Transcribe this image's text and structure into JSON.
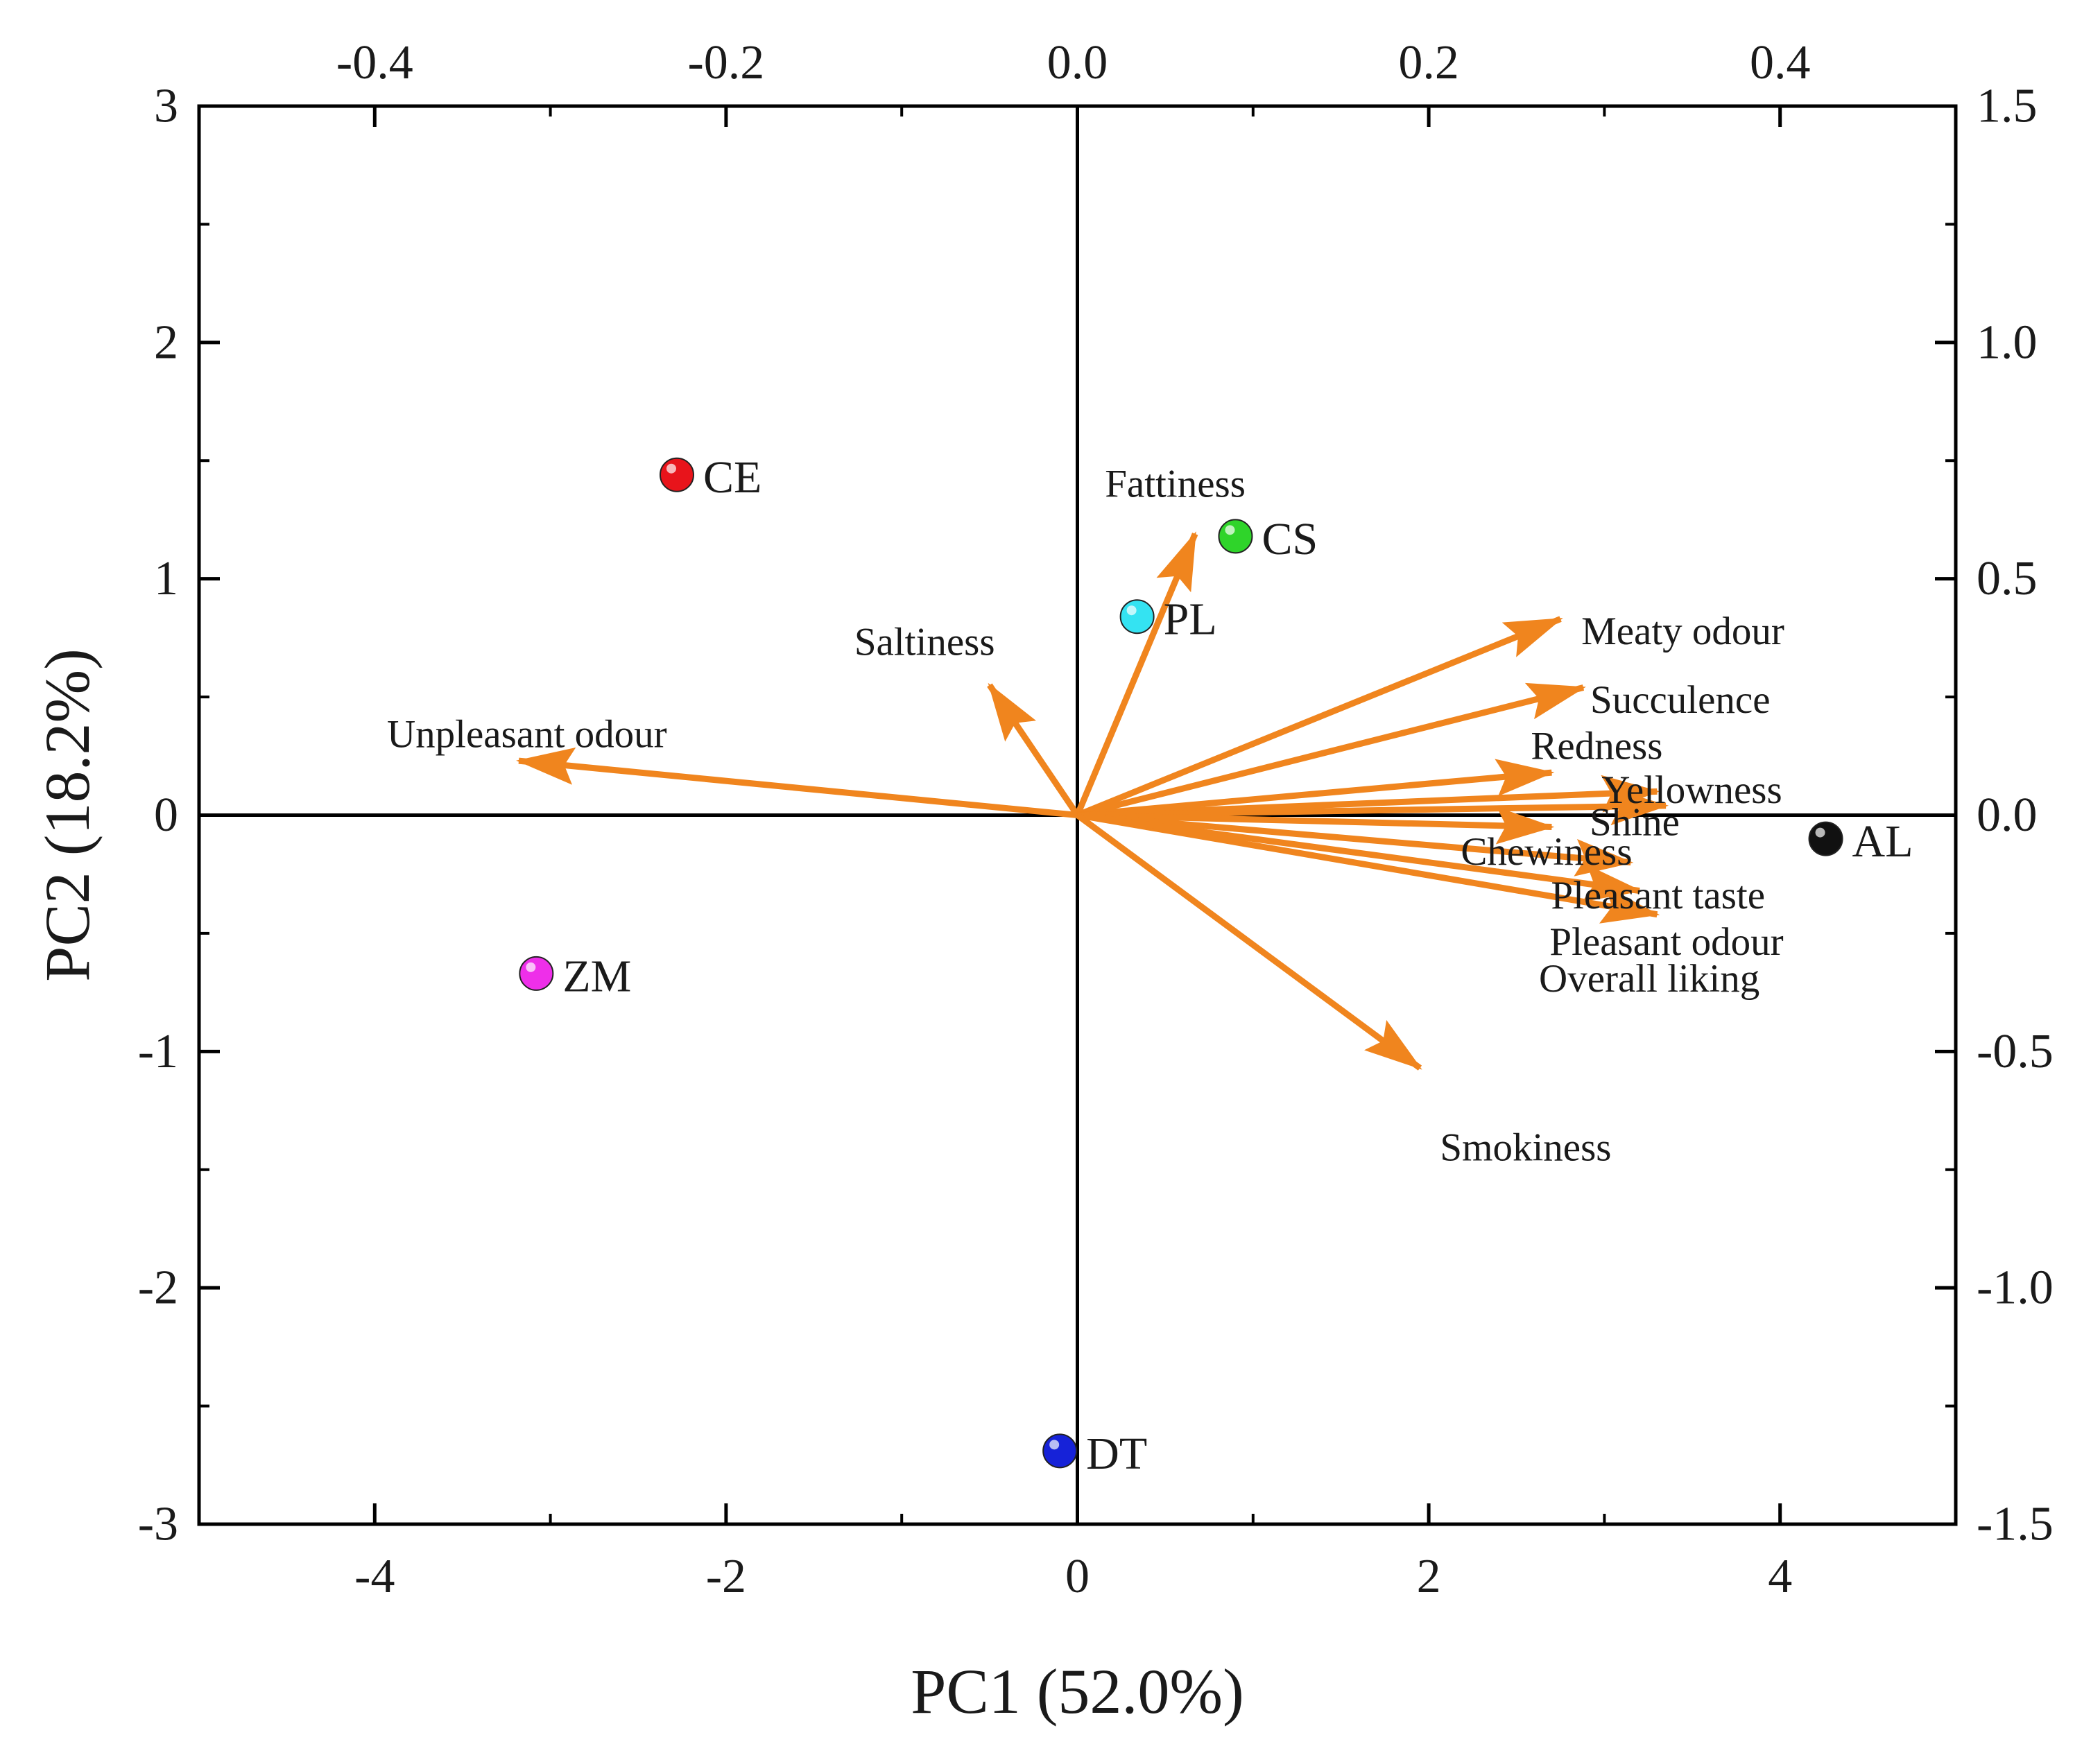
{
  "chart_data": {
    "type": "scatter",
    "subtype": "biplot",
    "title": "",
    "xlabel": "PC1 (52.0%)",
    "ylabel": "PC2 (18.2%)",
    "xlim": [
      -5,
      5
    ],
    "ylim": [
      -3,
      3
    ],
    "x_ticks": [
      -4,
      -2,
      0,
      2,
      4
    ],
    "x_tick_labels": [
      "-4",
      "-2",
      "0",
      "2",
      "4"
    ],
    "y_ticks": [
      -3,
      -2,
      -1,
      0,
      1,
      2,
      3
    ],
    "y_tick_labels": [
      "-3",
      "-2",
      "-1",
      "0",
      "1",
      "2",
      "3"
    ],
    "top_axis": {
      "lim": [
        -0.5,
        0.5
      ],
      "ticks": [
        -0.4,
        -0.2,
        0.0,
        0.2,
        0.4
      ],
      "tick_labels": [
        "-0.4",
        "-0.2",
        "0.0",
        "0.2",
        "0.4"
      ]
    },
    "right_axis": {
      "lim": [
        -1.5,
        1.5
      ],
      "ticks": [
        -1.5,
        -1.0,
        -0.5,
        0.0,
        0.5,
        1.0,
        1.5
      ],
      "tick_labels": [
        "-1.5",
        "-1.0",
        "-0.5",
        "0.0",
        "0.5",
        "1.0",
        "1.5"
      ]
    },
    "grid": false,
    "arrow_color": "#F0851E",
    "samples": [
      {
        "label": "CE",
        "x": -2.28,
        "y": 1.44,
        "color": "#E8141B"
      },
      {
        "label": "CS",
        "x": 0.9,
        "y": 1.18,
        "color": "#2FD42A"
      },
      {
        "label": "PL",
        "x": 0.34,
        "y": 0.84,
        "color": "#34E3F2"
      },
      {
        "label": "ZM",
        "x": -3.08,
        "y": -0.67,
        "color": "#EE2FE9"
      },
      {
        "label": "DT",
        "x": -0.1,
        "y": -2.69,
        "color": "#1622D8"
      },
      {
        "label": "AL",
        "x": 4.26,
        "y": -0.1,
        "color": "#111111"
      }
    ],
    "loadings": [
      {
        "label": "Fattiness",
        "x": 0.067,
        "y": 0.595
      },
      {
        "label": "Saltiness",
        "x": -0.05,
        "y": 0.275
      },
      {
        "label": "Unpleasant odour",
        "x": -0.318,
        "y": 0.115
      },
      {
        "label": "Meaty odour",
        "x": 0.275,
        "y": 0.415
      },
      {
        "label": "Succulence",
        "x": 0.288,
        "y": 0.27
      },
      {
        "label": "Redness",
        "x": 0.27,
        "y": 0.09
      },
      {
        "label": "Yellowness",
        "x": 0.33,
        "y": 0.05
      },
      {
        "label": "Shine",
        "x": 0.335,
        "y": 0.02
      },
      {
        "label": "Chewiness",
        "x": 0.27,
        "y": -0.025
      },
      {
        "label": "Pleasant taste",
        "x": 0.315,
        "y": -0.1
      },
      {
        "label": "Pleasant odour",
        "x": 0.33,
        "y": -0.21
      },
      {
        "label": "Overall liking",
        "x": 0.32,
        "y": -0.16
      },
      {
        "label": "Smokiness",
        "x": 0.195,
        "y": -0.535
      }
    ]
  }
}
